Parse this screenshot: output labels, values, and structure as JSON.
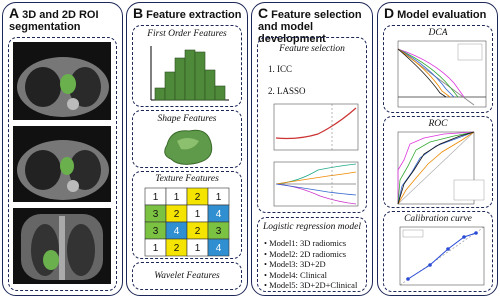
{
  "panels": [
    {
      "letter": "A",
      "title": "3D and 2D ROI segmentation"
    },
    {
      "letter": "B",
      "title": "Feature extraction",
      "sections": [
        "First Order Features",
        "Shape Features",
        "Texture Features",
        "Wavelet Features"
      ],
      "texture_grid": [
        [
          1,
          1,
          2,
          1
        ],
        [
          3,
          2,
          1,
          4
        ],
        [
          3,
          4,
          2,
          3
        ],
        [
          1,
          2,
          1,
          4
        ]
      ]
    },
    {
      "letter": "C",
      "title": "Feature selection and model development",
      "feature_selection": {
        "title": "Feature selection",
        "steps": [
          "1. ICC",
          "2. LASSO"
        ]
      },
      "model": {
        "title": "Logistic regression model",
        "items": [
          "Model1: 3D radiomics",
          "Model2: 2D radiomics",
          "Model3: 3D+2D",
          "Model4: Clinical",
          "Model5: 3D+2D+Clinical"
        ]
      }
    },
    {
      "letter": "D",
      "title": "Model evaluation",
      "sections": [
        "DCA",
        "ROC",
        "Calibration curve"
      ]
    }
  ]
}
